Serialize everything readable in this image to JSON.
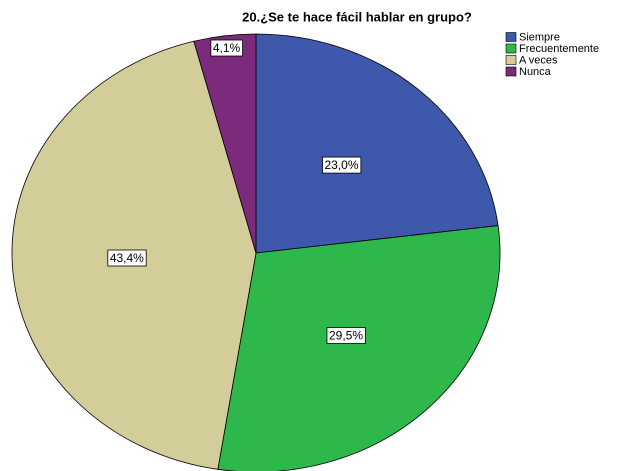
{
  "chart_data": {
    "type": "pie",
    "title": "20.¿Se te hace fácil hablar en grupo?",
    "categories": [
      "Siempre",
      "Frecuentemente",
      "A veces",
      "Nunca"
    ],
    "values": [
      23.0,
      29.5,
      43.4,
      4.1
    ],
    "value_labels": [
      "23,0%",
      "29,5%",
      "43,4%",
      "4,1%"
    ],
    "colors": [
      "#3e58ac",
      "#2eb84b",
      "#d3cd99",
      "#7c2a7c"
    ],
    "legend": "top-right"
  }
}
